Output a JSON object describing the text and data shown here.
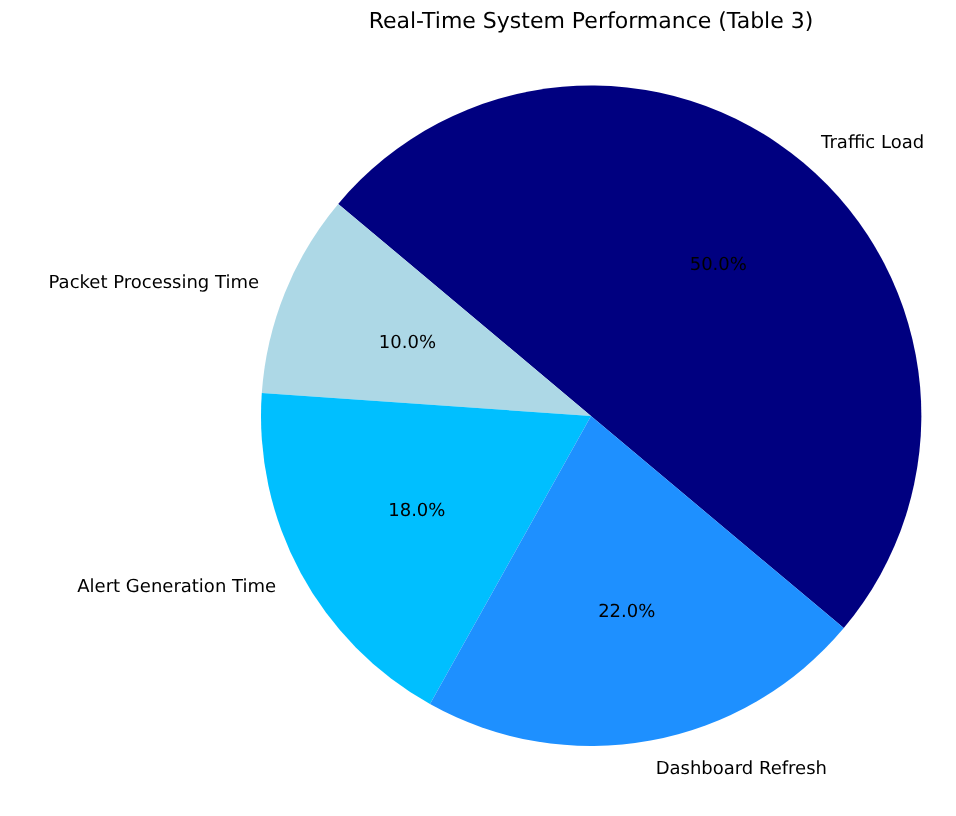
{
  "chart_data": {
    "type": "pie",
    "title": "Real-Time System Performance (Table 3)",
    "categories": [
      "Traffic Load",
      "Packet Processing Time",
      "Alert Generation Time",
      "Dashboard Refresh"
    ],
    "values": [
      50,
      10,
      18,
      22
    ],
    "colors": [
      "#000080",
      "#add8e6",
      "#00bfff",
      "#1e90ff"
    ],
    "value_labels": [
      "50.0%",
      "10.0%",
      "18.0%",
      "22.0%"
    ]
  }
}
